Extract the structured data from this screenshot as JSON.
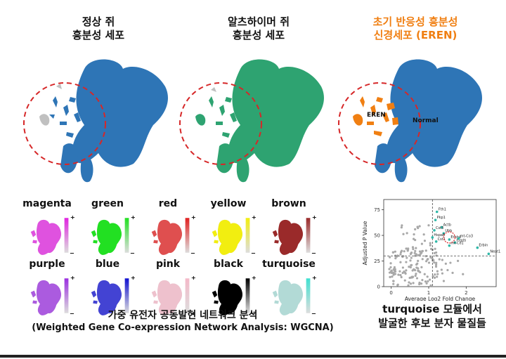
{
  "titles": {
    "normal_line1": "정상 쥐",
    "normal_line2": "흥분성 세포",
    "ad_line1": "알츠하이머 쥐",
    "ad_line2": "흥분성 세포",
    "eren_line1": "초기 반응성 흥분성",
    "eren_line2": "신경세포 (EREN)"
  },
  "umap_labels": {
    "eren": "EREN",
    "normal": "Normal"
  },
  "colors": {
    "steel_blue": "#2e75b6",
    "green": "#2ea371",
    "orange": "#f07f12",
    "grey": "#c0c0c0",
    "red_dash": "#d62728",
    "eren_title": "#f07f12"
  },
  "modules": [
    {
      "name": "magenta",
      "color": "#e024e0"
    },
    {
      "name": "green",
      "color": "#22e022"
    },
    {
      "name": "red",
      "color": "#e02020"
    },
    {
      "name": "yellow",
      "color": "#f2ee10"
    },
    {
      "name": "brown",
      "color": "#9a2a2a"
    },
    {
      "name": "purple",
      "color": "#9b30e0"
    },
    {
      "name": "blue",
      "color": "#1010d0"
    },
    {
      "name": "pink",
      "color": "#f4b8c8"
    },
    {
      "name": "black",
      "color": "#000000"
    },
    {
      "name": "turquoise",
      "color": "#40e0d0"
    }
  ],
  "legend_marks": {
    "plus": "+",
    "minus": "−"
  },
  "wgcna": {
    "line1": "가중 유전자 공동발현 네트워크 분석",
    "line2": "(Weighted Gene Co-expression Network Analysis: WGCNA)"
  },
  "turquoise_caption": {
    "line1": "turquoise 모듈에서",
    "line2": "발굴한 후보 분자 물질들"
  },
  "chart_data": {
    "type": "scatter",
    "title": "",
    "xlabel": "Average Log2 Fold Change",
    "ylabel": "Adjusted P Value",
    "xlim": [
      -0.2,
      2.8
    ],
    "ylim": [
      0,
      85
    ],
    "x_ticks": [
      0,
      1,
      2
    ],
    "y_ticks": [
      0,
      25,
      50,
      75
    ],
    "threshold_x": 1.1,
    "threshold_y": 30,
    "highlight_circle": {
      "x": 1.55,
      "y": 48
    },
    "labeled_points": [
      {
        "label": "Fth1",
        "x": 1.22,
        "y": 73
      },
      {
        "label": "Pkp1",
        "x": 1.18,
        "y": 65
      },
      {
        "label": "Actb",
        "x": 1.35,
        "y": 58
      },
      {
        "label": "Cst3",
        "x": 1.15,
        "y": 55
      },
      {
        "label": "Ubb",
        "x": 1.4,
        "y": 52
      },
      {
        "label": "Hspa8",
        "x": 1.1,
        "y": 48
      },
      {
        "label": "Erbb4",
        "x": 1.55,
        "y": 46
      },
      {
        "label": "Cst1",
        "x": 1.2,
        "y": 44
      },
      {
        "label": "Ptgds",
        "x": 1.7,
        "y": 43
      },
      {
        "label": "mt-Co3",
        "x": 1.8,
        "y": 47
      },
      {
        "label": "mt-Co1",
        "x": 1.55,
        "y": 40
      },
      {
        "label": "Erbin",
        "x": 2.3,
        "y": 38
      },
      {
        "label": "Neat1",
        "x": 2.6,
        "y": 32
      }
    ]
  }
}
